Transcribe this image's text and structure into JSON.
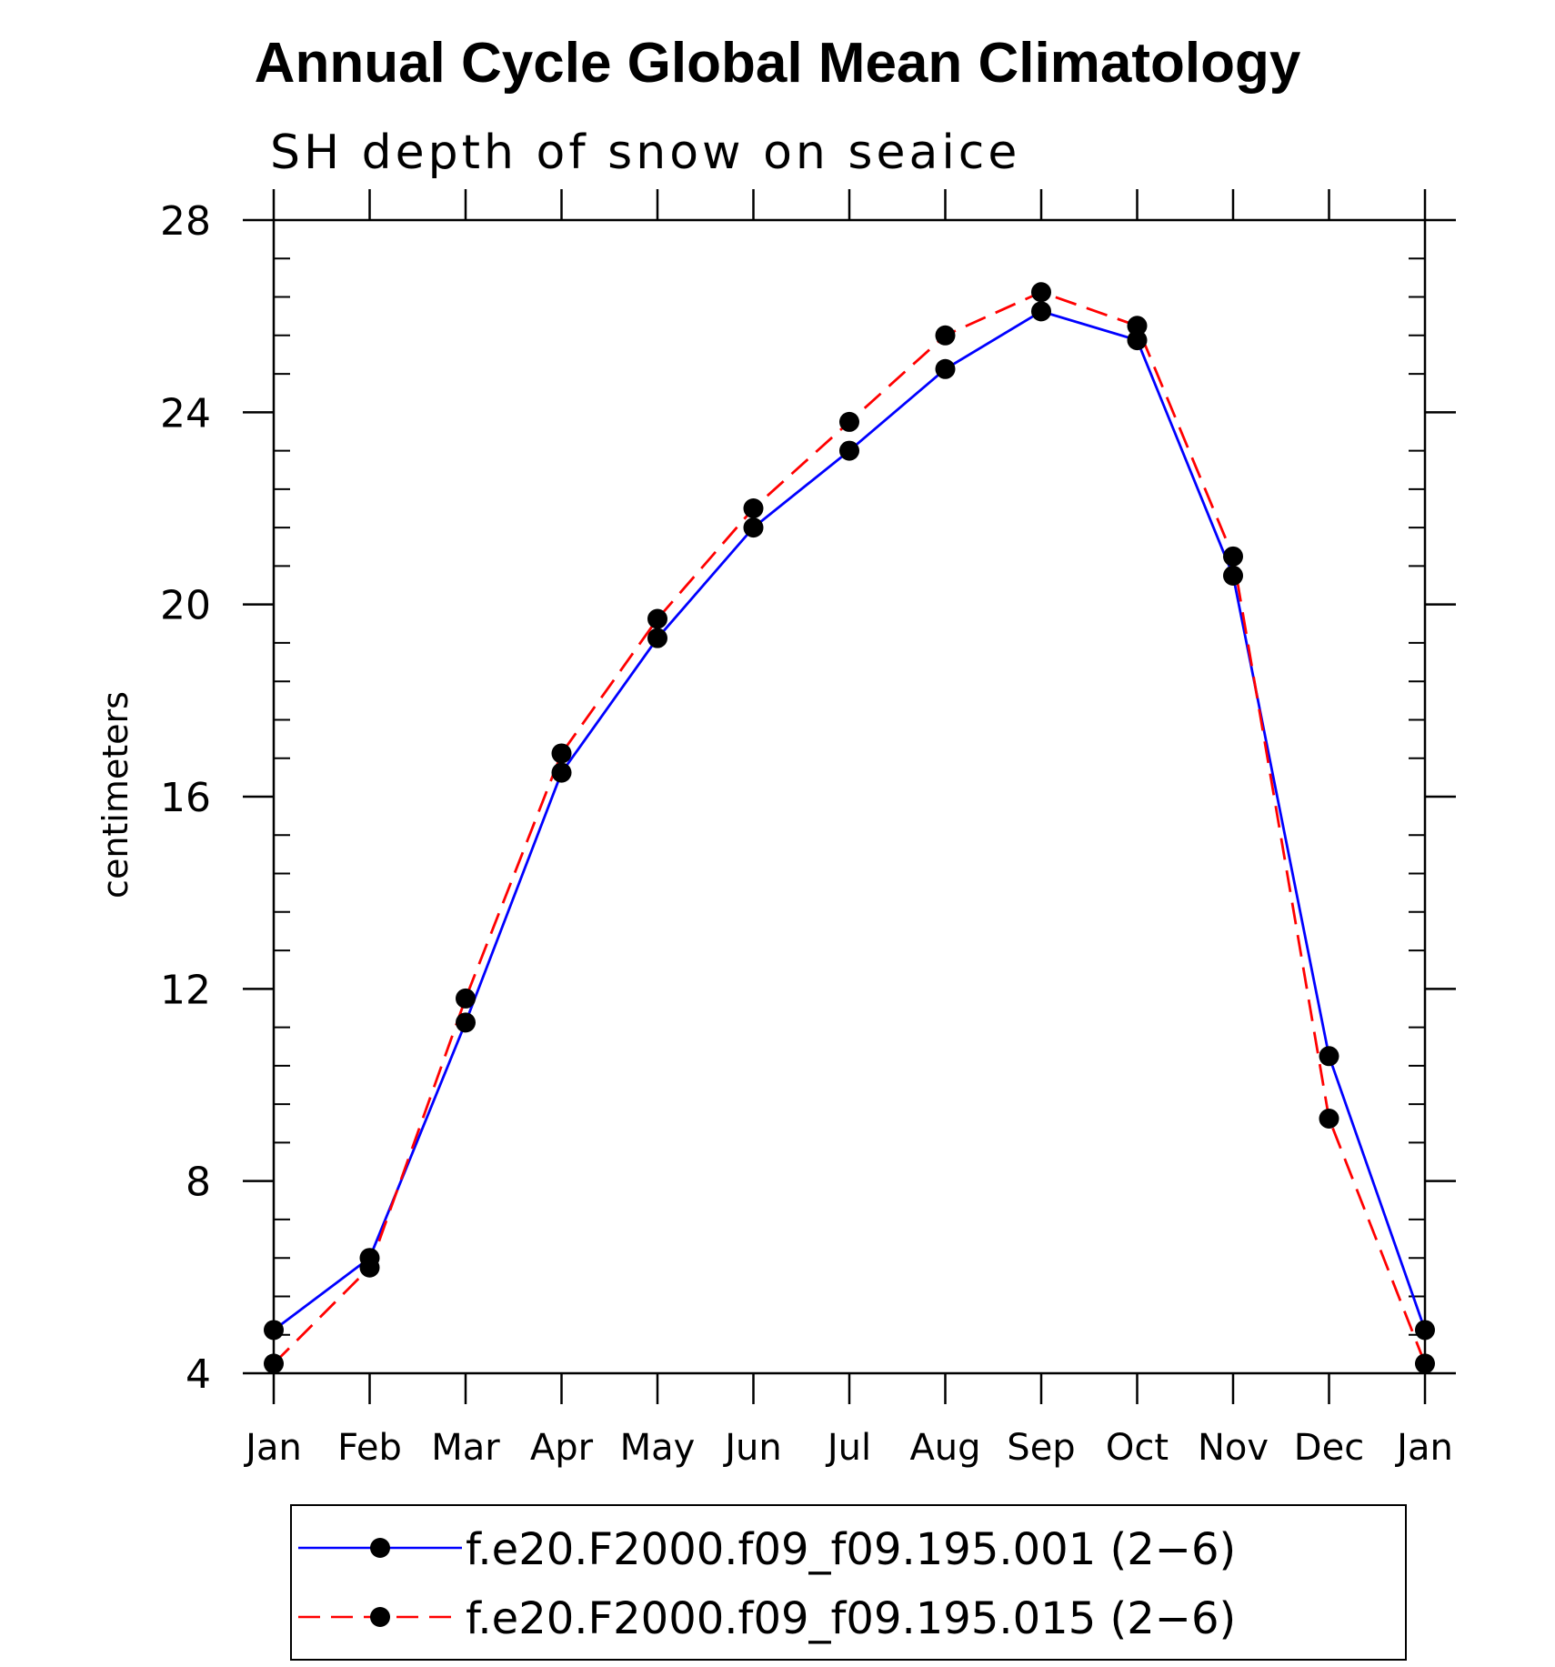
{
  "chart_data": {
    "type": "line",
    "title": "Annual Cycle Global Mean Climatology",
    "subtitle": "SH depth of snow on seaice",
    "ylabel": "centimeters",
    "xlabel": "",
    "ylim": [
      4,
      28
    ],
    "yticks": [
      4,
      8,
      12,
      16,
      20,
      24,
      28
    ],
    "yticks_labels": [
      "4",
      "8",
      "12",
      "16",
      "20",
      "24",
      "28"
    ],
    "categories": [
      "Jan",
      "Feb",
      "Mar",
      "Apr",
      "May",
      "Jun",
      "Jul",
      "Aug",
      "Sep",
      "Oct",
      "Nov",
      "Dec",
      "Jan"
    ],
    "series": [
      {
        "name": "f.e20.F2000.f09_f09.195.001 (2−6)",
        "color": "#0000ff",
        "dash": "solid",
        "values": [
          4.9,
          6.4,
          11.3,
          16.5,
          19.3,
          21.6,
          23.2,
          24.9,
          26.1,
          25.5,
          20.6,
          10.6,
          4.9
        ]
      },
      {
        "name": "f.e20.F2000.f09_f09.195.015 (2−6)",
        "color": "#ff0000",
        "dash": "dashed",
        "values": [
          4.2,
          6.2,
          11.8,
          16.9,
          19.7,
          22.0,
          23.8,
          25.6,
          26.5,
          25.8,
          21.0,
          9.3,
          4.2
        ]
      }
    ],
    "legend_position": "bottom",
    "grid": false
  }
}
